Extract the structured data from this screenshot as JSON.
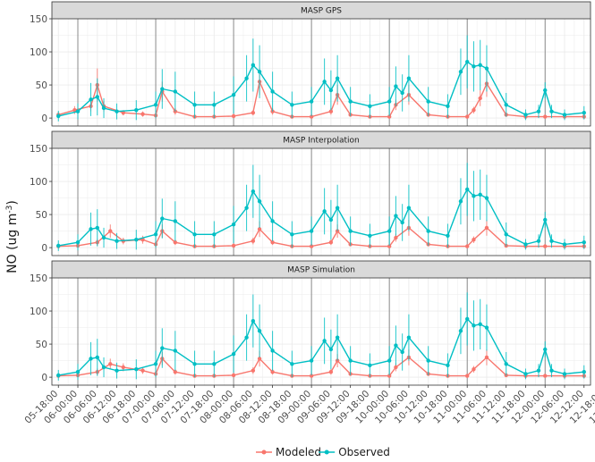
{
  "chart_data": {
    "type": "line",
    "ylabel": "NO (ug m",
    "ylabel_superscript": "-3",
    "ylabel_close": ")",
    "ylim": [
      -12,
      150
    ],
    "yticks": [
      0,
      50,
      100,
      150
    ],
    "x_unit": "hours",
    "xlim": [
      -2,
      164
    ],
    "xticks": [
      {
        "hour": 0,
        "label": "05-18:00"
      },
      {
        "hour": 6,
        "label": "06-00:00"
      },
      {
        "hour": 12,
        "label": "06-06:00"
      },
      {
        "hour": 18,
        "label": "06-12:00"
      },
      {
        "hour": 24,
        "label": "06-18:00"
      },
      {
        "hour": 30,
        "label": "07-00:00"
      },
      {
        "hour": 36,
        "label": "07-06:00"
      },
      {
        "hour": 42,
        "label": "07-12:00"
      },
      {
        "hour": 48,
        "label": "07-18:00"
      },
      {
        "hour": 54,
        "label": "08-00:00"
      },
      {
        "hour": 60,
        "label": "08-06:00"
      },
      {
        "hour": 66,
        "label": "08-12:00"
      },
      {
        "hour": 72,
        "label": "08-18:00"
      },
      {
        "hour": 78,
        "label": "09-00:00"
      },
      {
        "hour": 84,
        "label": "09-06:00"
      },
      {
        "hour": 90,
        "label": "09-12:00"
      },
      {
        "hour": 96,
        "label": "09-18:00"
      },
      {
        "hour": 102,
        "label": "10-00:00"
      },
      {
        "hour": 108,
        "label": "10-06:00"
      },
      {
        "hour": 114,
        "label": "10-12:00"
      },
      {
        "hour": 120,
        "label": "10-18:00"
      },
      {
        "hour": 126,
        "label": "11-00:00"
      },
      {
        "hour": 132,
        "label": "11-06:00"
      },
      {
        "hour": 138,
        "label": "11-12:00"
      },
      {
        "hour": 144,
        "label": "11-18:00"
      },
      {
        "hour": 150,
        "label": "12-00:00"
      },
      {
        "hour": 156,
        "label": "12-06:00"
      },
      {
        "hour": 162,
        "label": "12-12:00"
      },
      {
        "hour": 168,
        "label": "12-18:00"
      },
      {
        "hour": 174,
        "label": "13-00:00"
      }
    ],
    "day_boundaries": [
      6,
      30,
      54,
      78,
      102,
      126,
      150
    ],
    "grid": true,
    "colors": {
      "Modeled": "#F8766D",
      "Observed": "#00BFC4"
    },
    "legend": {
      "position": "bottom",
      "entries": [
        "Modeled",
        "Observed"
      ]
    },
    "panels": [
      {
        "title": "MASP GPS",
        "series": [
          {
            "name": "Modeled",
            "x": [
              0,
              5,
              10,
              12,
              14,
              20,
              26,
              30,
              32,
              36,
              42,
              48,
              54,
              60,
              62,
              66,
              72,
              78,
              84,
              86,
              90,
              96,
              102,
              104,
              108,
              114,
              120,
              126,
              128,
              130,
              132,
              138,
              144,
              150,
              156,
              162
            ],
            "values": [
              5,
              12,
              18,
              50,
              18,
              8,
              6,
              4,
              40,
              10,
              2,
              2,
              3,
              8,
              55,
              10,
              2,
              2,
              10,
              35,
              5,
              2,
              2,
              20,
              35,
              5,
              2,
              2,
              12,
              30,
              52,
              5,
              2,
              2,
              2,
              2
            ],
            "err": [
              4,
              6,
              8,
              25,
              8,
              4,
              4,
              3,
              15,
              5,
              2,
              2,
              2,
              4,
              20,
              5,
              2,
              2,
              5,
              15,
              3,
              2,
              2,
              8,
              15,
              3,
              2,
              2,
              5,
              12,
              20,
              3,
              2,
              2,
              2,
              2
            ]
          },
          {
            "name": "Observed",
            "x": [
              0,
              6,
              10,
              12,
              14,
              18,
              24,
              30,
              32,
              36,
              42,
              48,
              54,
              58,
              60,
              62,
              66,
              72,
              78,
              82,
              84,
              86,
              90,
              96,
              102,
              104,
              106,
              108,
              114,
              120,
              124,
              126,
              128,
              130,
              132,
              138,
              144,
              148,
              150,
              152,
              156,
              162
            ],
            "values": [
              3,
              10,
              28,
              32,
              15,
              10,
              12,
              20,
              44,
              40,
              20,
              20,
              35,
              60,
              80,
              70,
              40,
              20,
              25,
              55,
              42,
              60,
              25,
              18,
              25,
              48,
              38,
              60,
              25,
              18,
              70,
              85,
              78,
              80,
              75,
              20,
              5,
              10,
              42,
              10,
              5,
              8
            ],
            "err": [
              8,
              12,
              25,
              28,
              15,
              12,
              15,
              20,
              30,
              30,
              20,
              20,
              28,
              35,
              40,
              40,
              30,
              20,
              22,
              35,
              30,
              35,
              22,
              18,
              22,
              30,
              28,
              35,
              22,
              18,
              35,
              40,
              38,
              38,
              35,
              18,
              8,
              10,
              12,
              10,
              8,
              10
            ]
          }
        ]
      },
      {
        "title": "MASP Interpolation",
        "series": [
          {
            "name": "Modeled",
            "x": [
              0,
              6,
              12,
              16,
              20,
              26,
              30,
              32,
              36,
              42,
              48,
              54,
              60,
              62,
              66,
              72,
              78,
              84,
              86,
              90,
              96,
              102,
              104,
              108,
              114,
              120,
              126,
              128,
              132,
              138,
              144,
              150,
              156,
              162
            ],
            "values": [
              2,
              3,
              8,
              25,
              10,
              12,
              5,
              25,
              8,
              2,
              2,
              3,
              10,
              28,
              8,
              2,
              2,
              8,
              25,
              5,
              2,
              2,
              15,
              30,
              5,
              2,
              2,
              12,
              30,
              3,
              2,
              2,
              2,
              2
            ],
            "err": [
              2,
              3,
              5,
              10,
              5,
              6,
              3,
              10,
              4,
              2,
              2,
              2,
              5,
              12,
              4,
              2,
              2,
              4,
              10,
              3,
              2,
              2,
              6,
              12,
              3,
              2,
              2,
              5,
              12,
              2,
              2,
              2,
              2,
              2
            ]
          },
          {
            "name": "Observed",
            "x": [
              0,
              6,
              10,
              12,
              14,
              18,
              24,
              30,
              32,
              36,
              42,
              48,
              54,
              58,
              60,
              62,
              66,
              72,
              78,
              82,
              84,
              86,
              90,
              96,
              102,
              104,
              106,
              108,
              114,
              120,
              124,
              126,
              128,
              130,
              132,
              138,
              144,
              148,
              150,
              152,
              156,
              162
            ],
            "values": [
              3,
              8,
              28,
              30,
              15,
              10,
              12,
              20,
              44,
              40,
              20,
              20,
              35,
              60,
              85,
              70,
              40,
              20,
              25,
              55,
              42,
              60,
              25,
              18,
              25,
              48,
              38,
              60,
              25,
              18,
              70,
              88,
              78,
              80,
              75,
              20,
              5,
              10,
              42,
              10,
              5,
              8
            ],
            "err": [
              8,
              12,
              25,
              28,
              15,
              12,
              15,
              20,
              30,
              30,
              20,
              20,
              28,
              35,
              40,
              40,
              30,
              20,
              22,
              35,
              30,
              35,
              22,
              18,
              22,
              30,
              28,
              35,
              22,
              18,
              35,
              40,
              38,
              38,
              35,
              18,
              8,
              10,
              12,
              10,
              8,
              10
            ]
          }
        ]
      },
      {
        "title": "MASP Simulation",
        "series": [
          {
            "name": "Modeled",
            "x": [
              0,
              6,
              12,
              16,
              20,
              26,
              30,
              32,
              36,
              42,
              48,
              54,
              60,
              62,
              66,
              72,
              78,
              84,
              86,
              90,
              96,
              102,
              104,
              108,
              114,
              120,
              126,
              128,
              132,
              138,
              144,
              150,
              156,
              162
            ],
            "values": [
              2,
              3,
              8,
              20,
              15,
              10,
              5,
              28,
              8,
              2,
              2,
              3,
              10,
              28,
              8,
              2,
              2,
              8,
              25,
              5,
              2,
              2,
              15,
              30,
              5,
              2,
              2,
              12,
              30,
              3,
              2,
              2,
              2,
              2
            ],
            "err": [
              2,
              3,
              5,
              8,
              6,
              5,
              3,
              10,
              4,
              2,
              2,
              2,
              5,
              12,
              4,
              2,
              2,
              4,
              10,
              3,
              2,
              2,
              6,
              12,
              3,
              2,
              2,
              5,
              12,
              2,
              2,
              2,
              2,
              2
            ]
          },
          {
            "name": "Observed",
            "x": [
              0,
              6,
              10,
              12,
              14,
              18,
              24,
              30,
              32,
              36,
              42,
              48,
              54,
              58,
              60,
              62,
              66,
              72,
              78,
              82,
              84,
              86,
              90,
              96,
              102,
              104,
              106,
              108,
              114,
              120,
              124,
              126,
              128,
              130,
              132,
              138,
              144,
              148,
              150,
              152,
              156,
              162
            ],
            "values": [
              3,
              8,
              28,
              30,
              15,
              10,
              12,
              20,
              44,
              40,
              20,
              20,
              35,
              60,
              85,
              70,
              40,
              20,
              25,
              55,
              42,
              60,
              25,
              18,
              25,
              48,
              38,
              60,
              25,
              18,
              70,
              88,
              78,
              80,
              75,
              20,
              5,
              10,
              42,
              10,
              5,
              8
            ],
            "err": [
              8,
              12,
              25,
              28,
              15,
              12,
              15,
              20,
              30,
              30,
              20,
              20,
              28,
              35,
              40,
              40,
              30,
              20,
              22,
              35,
              30,
              35,
              22,
              18,
              22,
              30,
              28,
              35,
              22,
              18,
              35,
              40,
              38,
              38,
              35,
              18,
              8,
              10,
              12,
              10,
              8,
              10
            ]
          }
        ]
      }
    ]
  }
}
